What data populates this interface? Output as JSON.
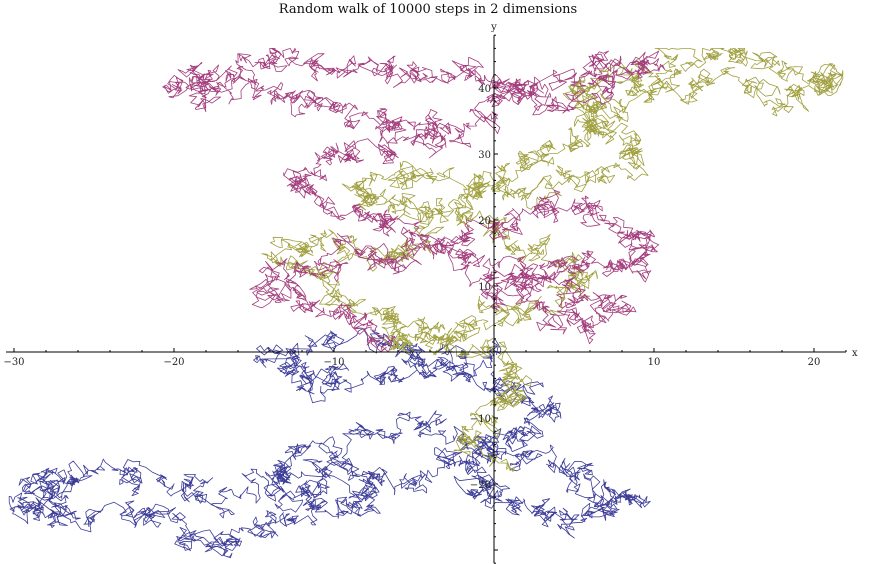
{
  "chart_data": {
    "type": "line",
    "title": "Random walk of 10000 steps in 2 dimensions",
    "xlabel": "x",
    "ylabel": "y",
    "xlim": [
      -30.5,
      22
    ],
    "ylim": [
      -32,
      48
    ],
    "grid": false,
    "legend": "none",
    "x_ticks": [
      {
        "value": -30,
        "label": "−30"
      },
      {
        "value": -20,
        "label": "−20"
      },
      {
        "value": -10,
        "label": "−10"
      },
      {
        "value": 10,
        "label": "10"
      },
      {
        "value": 20,
        "label": "20"
      }
    ],
    "y_ticks": [
      {
        "value": -20,
        "label": "−20"
      },
      {
        "value": -10,
        "label": "−10"
      },
      {
        "value": 10,
        "label": "10"
      },
      {
        "value": 20,
        "label": "20"
      },
      {
        "value": 30,
        "label": "30"
      },
      {
        "value": 40,
        "label": "40"
      }
    ],
    "series": [
      {
        "color": "#3d3d99",
        "waypoints": [
          [
            0,
            0
          ],
          [
            -3,
            -2
          ],
          [
            -6,
            -4
          ],
          [
            -10,
            -3
          ],
          [
            -12,
            -5
          ],
          [
            -14,
            -1
          ],
          [
            -11,
            2
          ],
          [
            -6,
            1
          ],
          [
            -3,
            -2
          ],
          [
            1,
            -5
          ],
          [
            3,
            -8
          ],
          [
            2,
            -12
          ],
          [
            -1,
            -14
          ],
          [
            -4,
            -11
          ],
          [
            -8,
            -13
          ],
          [
            -12,
            -16
          ],
          [
            -14,
            -21
          ],
          [
            -11,
            -22
          ],
          [
            -8,
            -19
          ],
          [
            -12,
            -18
          ],
          [
            -16,
            -22
          ],
          [
            -19,
            -21
          ],
          [
            -22,
            -19
          ],
          [
            -26,
            -19
          ],
          [
            -29,
            -20
          ],
          [
            -27,
            -22
          ],
          [
            -30,
            -24
          ],
          [
            -27,
            -25
          ],
          [
            -23,
            -24
          ],
          [
            -20,
            -26
          ],
          [
            -18,
            -29
          ],
          [
            -15,
            -27
          ],
          [
            -12,
            -25
          ],
          [
            -9,
            -23
          ],
          [
            -6,
            -20
          ],
          [
            -3,
            -17
          ],
          [
            0,
            -15
          ],
          [
            4,
            -17
          ],
          [
            6,
            -20
          ],
          [
            9,
            -22
          ],
          [
            7,
            -24
          ],
          [
            4,
            -26
          ],
          [
            1,
            -23
          ],
          [
            -1,
            -20
          ],
          [
            0,
            -17
          ]
        ]
      },
      {
        "color": "#a0a040",
        "waypoints": [
          [
            0,
            -17
          ],
          [
            -2,
            -12
          ],
          [
            1,
            -8
          ],
          [
            2,
            -4
          ],
          [
            0,
            0
          ],
          [
            -3,
            3
          ],
          [
            -6,
            5
          ],
          [
            -9,
            8
          ],
          [
            -11,
            12
          ],
          [
            -14,
            14
          ],
          [
            -11,
            16
          ],
          [
            -8,
            14
          ],
          [
            -5,
            16
          ],
          [
            -3,
            20
          ],
          [
            -6,
            22
          ],
          [
            -9,
            24
          ],
          [
            -6,
            27
          ],
          [
            -2,
            26
          ],
          [
            2,
            24
          ],
          [
            6,
            26
          ],
          [
            9,
            29
          ],
          [
            8,
            33
          ],
          [
            6,
            36
          ],
          [
            5,
            39
          ],
          [
            7,
            42
          ],
          [
            11,
            43
          ],
          [
            14,
            45
          ],
          [
            17,
            44
          ],
          [
            20,
            43
          ],
          [
            22,
            41
          ],
          [
            19,
            38
          ],
          [
            16,
            40
          ],
          [
            13,
            41
          ],
          [
            10,
            40
          ],
          [
            7,
            36
          ],
          [
            5,
            33
          ],
          [
            3,
            29
          ],
          [
            0,
            26
          ],
          [
            -2,
            22
          ],
          [
            0,
            18
          ],
          [
            3,
            15
          ],
          [
            6,
            12
          ],
          [
            4,
            9
          ],
          [
            1,
            6
          ],
          [
            -2,
            3
          ],
          [
            -5,
            1
          ],
          [
            -7,
            2
          ]
        ]
      },
      {
        "color": "#a33c7c",
        "waypoints": [
          [
            -7,
            2
          ],
          [
            -9,
            5
          ],
          [
            -12,
            8
          ],
          [
            -15,
            10
          ],
          [
            -12,
            13
          ],
          [
            -9,
            16
          ],
          [
            -6,
            13
          ],
          [
            -3,
            16
          ],
          [
            0,
            19
          ],
          [
            3,
            22
          ],
          [
            6,
            20
          ],
          [
            9,
            18
          ],
          [
            10,
            15
          ],
          [
            8,
            12
          ],
          [
            5,
            14
          ],
          [
            2,
            12
          ],
          [
            0,
            9
          ],
          [
            3,
            6
          ],
          [
            6,
            4
          ],
          [
            8,
            7
          ],
          [
            5,
            9
          ],
          [
            2,
            11
          ],
          [
            -1,
            14
          ],
          [
            -4,
            17
          ],
          [
            -7,
            20
          ],
          [
            -10,
            23
          ],
          [
            -13,
            26
          ],
          [
            -10,
            29
          ],
          [
            -7,
            31
          ],
          [
            -4,
            33
          ],
          [
            -1,
            35
          ],
          [
            1,
            39
          ],
          [
            4,
            42
          ],
          [
            7,
            44
          ],
          [
            10,
            45
          ],
          [
            7,
            41
          ],
          [
            4,
            38
          ],
          [
            1,
            40
          ],
          [
            -2,
            42
          ],
          [
            -5,
            41
          ],
          [
            -8,
            43
          ],
          [
            -11,
            44
          ],
          [
            -14,
            43
          ],
          [
            -17,
            42
          ],
          [
            -20,
            41
          ],
          [
            -18,
            39
          ],
          [
            -15,
            40
          ],
          [
            -12,
            38
          ],
          [
            -9,
            36
          ],
          [
            -6,
            34
          ],
          [
            -3,
            31
          ]
        ]
      }
    ]
  }
}
